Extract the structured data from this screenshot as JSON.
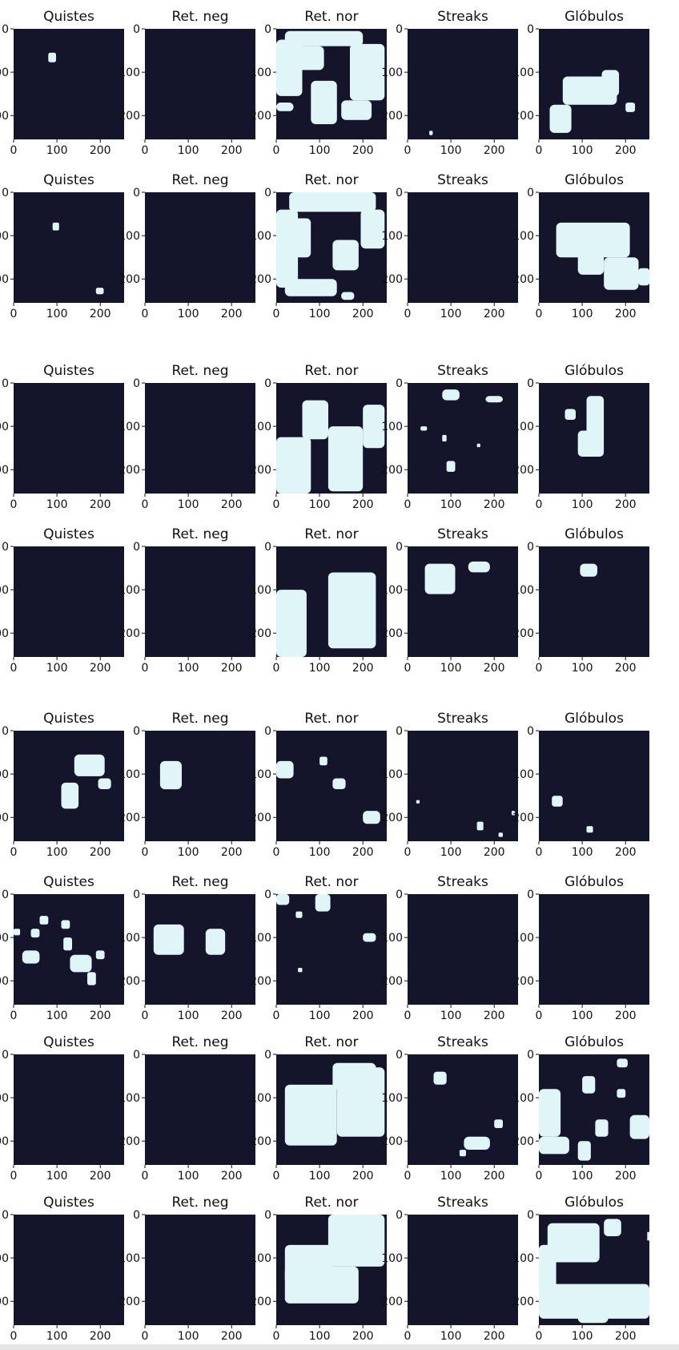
{
  "colors": {
    "background": "#14142b",
    "mask": "#dff5f7",
    "text": "#111111"
  },
  "chart_data": {
    "type": "heatmap",
    "description_rows": 8,
    "description_cols": 5,
    "x_ticks": [
      "0",
      "100",
      "200"
    ],
    "y_ticks": [
      "0",
      "100",
      "200"
    ],
    "xlim": [
      0,
      255
    ],
    "ylim": [
      255,
      0
    ],
    "rows": [
      {
        "panels": [
          {
            "title": "Quistes",
            "regions": [
              [
                80,
                55,
                18,
                22
              ]
            ]
          },
          {
            "title": "Ret. neg",
            "regions": []
          },
          {
            "title": "Ret. nor",
            "regions": [
              [
                20,
                5,
                180,
                35
              ],
              [
                0,
                25,
                60,
                130
              ],
              [
                50,
                40,
                60,
                55
              ],
              [
                170,
                35,
                80,
                130
              ],
              [
                80,
                120,
                60,
                100
              ],
              [
                150,
                165,
                70,
                45
              ],
              [
                0,
                170,
                40,
                20
              ]
            ]
          },
          {
            "title": "Streaks",
            "regions": [
              [
                50,
                235,
                8,
                10
              ]
            ]
          },
          {
            "title": "Glóbulos",
            "regions": [
              [
                55,
                110,
                125,
                65
              ],
              [
                145,
                95,
                40,
                60
              ],
              [
                25,
                175,
                50,
                65
              ],
              [
                200,
                170,
                22,
                22
              ]
            ]
          }
        ]
      },
      {
        "panels": [
          {
            "title": "Quistes",
            "regions": [
              [
                90,
                70,
                15,
                18
              ],
              [
                190,
                220,
                18,
                15
              ]
            ]
          },
          {
            "title": "Ret. neg",
            "regions": []
          },
          {
            "title": "Ret. nor",
            "regions": [
              [
                30,
                0,
                200,
                45
              ],
              [
                0,
                40,
                50,
                180
              ],
              [
                40,
                60,
                40,
                90
              ],
              [
                195,
                40,
                55,
                90
              ],
              [
                130,
                110,
                60,
                70
              ],
              [
                20,
                200,
                120,
                40
              ],
              [
                150,
                230,
                30,
                18
              ]
            ]
          },
          {
            "title": "Streaks",
            "regions": []
          },
          {
            "title": "Glóbulos",
            "regions": [
              [
                40,
                70,
                170,
                80
              ],
              [
                90,
                130,
                60,
                60
              ],
              [
                150,
                150,
                80,
                75
              ],
              [
                230,
                175,
                25,
                40
              ],
              [
                200,
                160,
                30,
                30
              ]
            ]
          }
        ]
      },
      {
        "panels": [
          {
            "title": "Quistes",
            "regions": []
          },
          {
            "title": "Ret. neg",
            "regions": []
          },
          {
            "title": "Ret. nor",
            "regions": [
              [
                60,
                40,
                60,
                90
              ],
              [
                0,
                125,
                80,
                130
              ],
              [
                200,
                50,
                50,
                100
              ],
              [
                120,
                100,
                80,
                150
              ]
            ]
          },
          {
            "title": "Streaks",
            "regions": [
              [
                80,
                15,
                40,
                25
              ],
              [
                180,
                30,
                40,
                15
              ],
              [
                30,
                100,
                15,
                10
              ],
              [
                80,
                120,
                10,
                15
              ],
              [
                90,
                180,
                20,
                25
              ],
              [
                160,
                140,
                8,
                8
              ]
            ]
          },
          {
            "title": "Glóbulos",
            "regions": [
              [
                60,
                60,
                25,
                25
              ],
              [
                110,
                30,
                40,
                140
              ],
              [
                90,
                110,
                40,
                60
              ]
            ]
          }
        ]
      },
      {
        "panels": [
          {
            "title": "Quistes",
            "regions": []
          },
          {
            "title": "Ret. neg",
            "regions": []
          },
          {
            "title": "Ret. nor",
            "regions": [
              [
                0,
                100,
                70,
                155
              ],
              [
                120,
                60,
                110,
                175
              ],
              [
                150,
                60,
                60,
                100
              ]
            ]
          },
          {
            "title": "Streaks",
            "regions": [
              [
                40,
                40,
                70,
                70
              ],
              [
                140,
                35,
                50,
                25
              ]
            ]
          },
          {
            "title": "Glóbulos",
            "regions": [
              [
                95,
                40,
                40,
                30
              ]
            ]
          }
        ]
      },
      {
        "panels": [
          {
            "title": "Quistes",
            "regions": [
              [
                140,
                55,
                70,
                50
              ],
              [
                110,
                120,
                40,
                60
              ],
              [
                195,
                110,
                30,
                25
              ]
            ]
          },
          {
            "title": "Ret. neg",
            "regions": [
              [
                35,
                70,
                50,
                65
              ]
            ]
          },
          {
            "title": "Ret. nor",
            "regions": [
              [
                0,
                70,
                40,
                40
              ],
              [
                100,
                60,
                18,
                20
              ],
              [
                130,
                110,
                30,
                25
              ],
              [
                200,
                185,
                40,
                30
              ]
            ]
          },
          {
            "title": "Streaks",
            "regions": [
              [
                20,
                160,
                8,
                8
              ],
              [
                160,
                210,
                15,
                20
              ],
              [
                210,
                235,
                10,
                10
              ],
              [
                240,
                185,
                8,
                10
              ]
            ]
          },
          {
            "title": "Glóbulos",
            "regions": [
              [
                30,
                150,
                25,
                25
              ],
              [
                110,
                220,
                15,
                15
              ]
            ]
          }
        ]
      },
      {
        "panels": [
          {
            "title": "Quistes",
            "regions": [
              [
                0,
                80,
                15,
                15
              ],
              [
                20,
                130,
                40,
                30
              ],
              [
                40,
                80,
                20,
                20
              ],
              [
                60,
                50,
                20,
                20
              ],
              [
                110,
                60,
                20,
                20
              ],
              [
                115,
                100,
                20,
                30
              ],
              [
                130,
                140,
                50,
                40
              ],
              [
                170,
                180,
                20,
                30
              ],
              [
                190,
                130,
                20,
                20
              ]
            ]
          },
          {
            "title": "Ret. neg",
            "regions": [
              [
                20,
                70,
                70,
                70
              ],
              [
                140,
                80,
                45,
                60
              ]
            ]
          },
          {
            "title": "Ret. nor",
            "regions": [
              [
                0,
                0,
                30,
                25
              ],
              [
                90,
                0,
                35,
                40
              ],
              [
                45,
                40,
                15,
                15
              ],
              [
                200,
                90,
                30,
                20
              ],
              [
                50,
                170,
                10,
                10
              ]
            ]
          },
          {
            "title": "Streaks",
            "regions": []
          },
          {
            "title": "Glóbulos",
            "regions": []
          }
        ]
      },
      {
        "panels": [
          {
            "title": "Quistes",
            "regions": []
          },
          {
            "title": "Ret. neg",
            "regions": []
          },
          {
            "title": "Ret. nor",
            "regions": [
              [
                20,
                70,
                120,
                140
              ],
              [
                140,
                30,
                110,
                160
              ],
              [
                130,
                20,
                100,
                60
              ]
            ]
          },
          {
            "title": "Streaks",
            "regions": [
              [
                60,
                40,
                30,
                30
              ],
              [
                130,
                190,
                60,
                30
              ],
              [
                200,
                150,
                20,
                20
              ],
              [
                120,
                220,
                15,
                15
              ]
            ]
          },
          {
            "title": "Glóbulos",
            "regions": [
              [
                0,
                80,
                50,
                110
              ],
              [
                100,
                50,
                30,
                40
              ],
              [
                180,
                10,
                25,
                20
              ],
              [
                180,
                80,
                20,
                20
              ],
              [
                130,
                150,
                30,
                40
              ],
              [
                0,
                190,
                70,
                40
              ],
              [
                90,
                200,
                30,
                45
              ],
              [
                210,
                140,
                45,
                55
              ]
            ]
          }
        ]
      },
      {
        "panels": [
          {
            "title": "Quistes",
            "regions": []
          },
          {
            "title": "Ret. neg",
            "regions": []
          },
          {
            "title": "Ret. nor",
            "regions": [
              [
                120,
                0,
                130,
                120
              ],
              [
                20,
                70,
                110,
                90
              ],
              [
                20,
                120,
                170,
                85
              ]
            ]
          },
          {
            "title": "Streaks",
            "regions": []
          },
          {
            "title": "Glóbulos",
            "regions": [
              [
                20,
                20,
                120,
                90
              ],
              [
                0,
                70,
                40,
                160
              ],
              [
                150,
                10,
                40,
                40
              ],
              [
                0,
                160,
                255,
                80
              ],
              [
                90,
                180,
                70,
                70
              ],
              [
                250,
                40,
                5,
                20
              ]
            ]
          }
        ]
      }
    ]
  }
}
